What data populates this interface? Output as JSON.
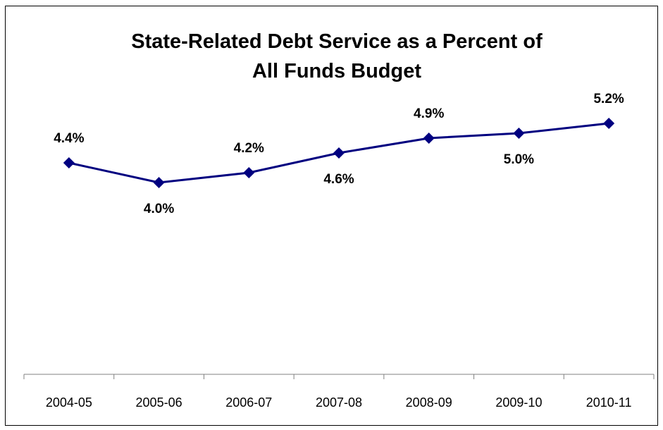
{
  "chart_data": {
    "type": "line",
    "title_lines": [
      "State-Related Debt Service as a Percent of",
      "All Funds Budget"
    ],
    "xlabel": "",
    "ylabel": "",
    "categories": [
      "2004-05",
      "2005-06",
      "2006-07",
      "2007-08",
      "2008-09",
      "2009-10",
      "2010-11"
    ],
    "series": [
      {
        "values": [
          4.4,
          4.0,
          4.2,
          4.6,
          4.9,
          5.0,
          5.2
        ],
        "data_labels": [
          "4.4%",
          "4.0%",
          "4.2%",
          "4.6%",
          "4.9%",
          "5.0%",
          "5.2%"
        ],
        "label_positions": [
          "above",
          "below",
          "above",
          "below",
          "above",
          "below",
          "above"
        ],
        "color": "#000080",
        "marker": "diamond"
      }
    ],
    "grid": false,
    "y_axis_visible": false,
    "legend": "none"
  }
}
